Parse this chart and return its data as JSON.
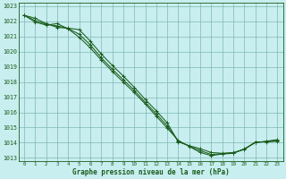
{
  "title": "Graphe pression niveau de la mer (hPa)",
  "bg_color": "#c8eef0",
  "grid_color": "#80b8b0",
  "line_color": "#1a5c1a",
  "xlim": [
    -0.5,
    23.5
  ],
  "ylim": [
    1012.8,
    1023.2
  ],
  "yticks": [
    1013,
    1014,
    1015,
    1016,
    1017,
    1018,
    1019,
    1020,
    1021,
    1022,
    1023
  ],
  "xticks": [
    0,
    1,
    2,
    3,
    4,
    5,
    6,
    7,
    8,
    9,
    10,
    11,
    12,
    13,
    14,
    15,
    16,
    17,
    18,
    19,
    20,
    21,
    22,
    23
  ],
  "line1": [
    1022.4,
    1022.2,
    1021.85,
    1021.6,
    1021.55,
    1021.45,
    1020.7,
    1019.85,
    1019.1,
    1018.4,
    1017.65,
    1016.85,
    1016.1,
    1015.3,
    1014.05,
    1013.8,
    1013.6,
    1013.35,
    1013.3,
    1013.35,
    1013.55,
    1014.05,
    1014.05,
    1014.1
  ],
  "line2": [
    1022.4,
    1021.95,
    1021.75,
    1021.85,
    1021.5,
    1020.95,
    1020.25,
    1019.45,
    1018.7,
    1018.0,
    1017.3,
    1016.55,
    1015.75,
    1014.95,
    1014.15,
    1013.75,
    1013.35,
    1013.15,
    1013.25,
    1013.3,
    1013.6,
    1014.0,
    1014.1,
    1014.2
  ],
  "line3": [
    1022.4,
    1022.05,
    1021.8,
    1021.7,
    1021.52,
    1021.15,
    1020.45,
    1019.6,
    1018.85,
    1018.15,
    1017.45,
    1016.65,
    1015.9,
    1015.1,
    1014.1,
    1013.77,
    1013.47,
    1013.22,
    1013.28,
    1013.32,
    1013.57,
    1014.02,
    1014.07,
    1014.15
  ]
}
